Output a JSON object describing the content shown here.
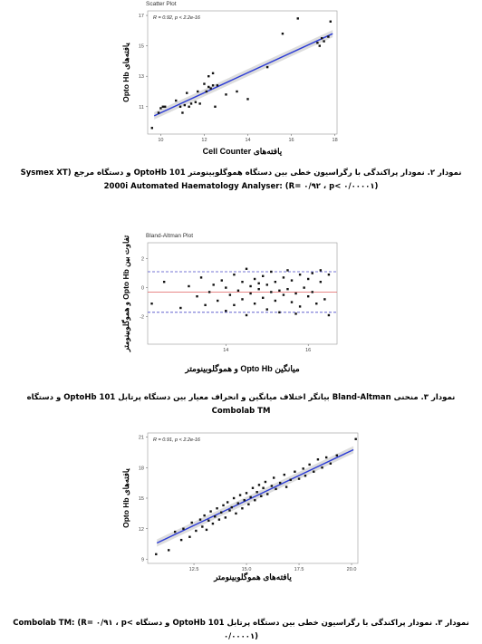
{
  "chart_data": [
    {
      "type": "scatter",
      "title": "Scatter Plot",
      "annotation": "R = 0.92, p < 2.2e-16",
      "xlabel": "یافته‌های Cell Counter",
      "ylabel": "یافته‌های Opto Hb",
      "caption": "نمودار ۲. نمودار پراکندگی با رگراسیون خطی بین دستگاه هموگلوبینومتر OptoHb 101 و دستگاه مرجع (Sysmex XT 2000i Automated Haematology Analyser: (R= ۰/۹۲ ، p< ۰/۰۰۰۰۱)",
      "xlim": [
        9.4,
        18.1
      ],
      "ylim": [
        9.2,
        17.3
      ],
      "xticks": [
        10,
        12,
        14,
        16,
        18
      ],
      "yticks": [
        11,
        13,
        15,
        17
      ],
      "color": "#111111",
      "fit_color": "#2b3bd6",
      "x": [
        9.6,
        9.9,
        10.0,
        10.1,
        10.2,
        10.7,
        10.9,
        11.0,
        11.1,
        11.2,
        11.3,
        11.4,
        11.6,
        11.7,
        11.8,
        12.0,
        12.1,
        12.2,
        12.2,
        12.3,
        12.4,
        12.4,
        12.5,
        12.6,
        13.0,
        13.5,
        14.0,
        14.9,
        15.6,
        16.3,
        17.2,
        17.3,
        17.4,
        17.5,
        17.7,
        17.8
      ],
      "values": [
        9.6,
        10.6,
        10.9,
        11.0,
        11.0,
        11.4,
        11.0,
        10.6,
        11.1,
        11.9,
        11.0,
        11.2,
        11.3,
        12.0,
        11.2,
        12.5,
        12.0,
        12.3,
        13.0,
        12.2,
        12.4,
        13.2,
        11.0,
        12.4,
        11.8,
        12.0,
        11.5,
        13.6,
        15.8,
        16.8,
        15.2,
        15.0,
        15.5,
        15.3,
        15.6,
        16.6
      ],
      "fit": {
        "x": [
          9.7,
          17.9
        ],
        "values": [
          10.4,
          15.8
        ]
      }
    },
    {
      "type": "scatter",
      "title": "Bland-Altman Plot",
      "xlabel": "میانگین Opto Hb و هموگلوبینومتر",
      "ylabel": "تفاوت بین Opto Hb و هموگلوبینومتر",
      "caption": "نمودار ۳. منحنی Bland-Altman بیانگر اختلاف میانگین و انحراف معیار بین دستگاه پرتابل OptoHb 101 و دستگاه Combolab TM",
      "xlim": [
        12.1,
        16.7
      ],
      "ylim": [
        -3.9,
        3.1
      ],
      "xticks": [
        14,
        16
      ],
      "yticks": [
        -2,
        0,
        2
      ],
      "color": "#111111",
      "reference_lines": [
        {
          "value": 1.1,
          "color": "#4a4ac8",
          "dashed": true
        },
        {
          "value": -0.3,
          "color": "#e06060",
          "dashed": false
        },
        {
          "value": -1.7,
          "color": "#4a4ac8",
          "dashed": true
        }
      ],
      "x": [
        12.2,
        12.5,
        12.9,
        13.1,
        13.3,
        13.4,
        13.5,
        13.6,
        13.7,
        13.8,
        13.9,
        14.0,
        14.0,
        14.1,
        14.2,
        14.2,
        14.3,
        14.4,
        14.4,
        14.5,
        14.5,
        14.6,
        14.6,
        14.7,
        14.7,
        14.8,
        14.8,
        14.9,
        14.9,
        15.0,
        15.0,
        15.1,
        15.1,
        15.2,
        15.2,
        15.3,
        15.3,
        15.4,
        15.4,
        15.5,
        15.5,
        15.6,
        15.6,
        15.7,
        15.8,
        15.8,
        15.9,
        16.0,
        16.0,
        16.1,
        16.1,
        16.2,
        16.3,
        16.4,
        16.5,
        16.5,
        16.3,
        15.7
      ],
      "values": [
        -1.1,
        0.4,
        -1.4,
        0.1,
        -0.6,
        0.7,
        -1.2,
        -0.3,
        0.2,
        -0.9,
        0.5,
        -1.6,
        0.0,
        -0.5,
        0.9,
        -1.2,
        -0.2,
        0.4,
        -0.8,
        1.3,
        -1.9,
        0.1,
        -0.4,
        0.6,
        -1.1,
        -0.1,
        0.3,
        -0.7,
        0.8,
        -1.5,
        0.2,
        -0.3,
        1.1,
        -0.9,
        0.4,
        -0.2,
        -1.7,
        0.7,
        -0.5,
        1.2,
        -0.1,
        -1.0,
        0.5,
        -0.4,
        0.9,
        -1.3,
        0.0,
        -0.6,
        0.6,
        1.0,
        -0.3,
        -1.1,
        0.4,
        -0.8,
        0.9,
        -1.9,
        1.2,
        -1.8
      ]
    },
    {
      "type": "scatter",
      "annotation": "R = 0.91, p < 2.2e-16",
      "xlabel": "یافته‌های هموگلوبینومتر",
      "ylabel": "یافته‌های Opto Hb",
      "caption": "نمودار ۳. نمودار پراکندگی با رگراسیون خطی بین دستگاه پرتابل OptoHb 101 و دستگاه Combolab TM: (R= ۰/۹۱ ، p< ۰/۰۰۰۰۱)",
      "xlim": [
        10.3,
        20.3
      ],
      "ylim": [
        8.6,
        21.4
      ],
      "xticks": [
        12.5,
        {
          "value": 15,
          "label": "15.0"
        },
        17.5,
        {
          "value": 20,
          "label": "20.0"
        }
      ],
      "yticks": [
        9,
        12,
        15,
        18,
        21
      ],
      "color": "#111111",
      "fit_color": "#2b3bd6",
      "x": [
        10.7,
        11.3,
        11.6,
        11.9,
        12.0,
        12.3,
        12.4,
        12.6,
        12.8,
        12.9,
        13.0,
        13.1,
        13.2,
        13.3,
        13.4,
        13.5,
        13.6,
        13.7,
        13.8,
        13.9,
        14.0,
        14.1,
        14.2,
        14.3,
        14.4,
        14.5,
        14.6,
        14.7,
        14.8,
        14.9,
        15.0,
        15.1,
        15.2,
        15.3,
        15.4,
        15.5,
        15.6,
        15.7,
        15.8,
        15.9,
        16.0,
        16.2,
        16.3,
        16.4,
        16.6,
        16.8,
        16.9,
        17.1,
        17.3,
        17.5,
        17.7,
        17.8,
        18.0,
        18.2,
        18.4,
        18.6,
        18.8,
        19.0,
        19.3,
        20.2
      ],
      "values": [
        9.5,
        9.9,
        11.7,
        10.9,
        12.0,
        11.2,
        12.6,
        11.8,
        12.9,
        12.2,
        13.3,
        11.9,
        12.8,
        13.7,
        12.5,
        13.2,
        14.0,
        12.9,
        13.6,
        14.3,
        13.1,
        14.6,
        13.8,
        14.1,
        15.0,
        13.5,
        14.5,
        15.3,
        14.0,
        14.8,
        15.5,
        14.4,
        15.1,
        16.0,
        14.8,
        15.6,
        16.3,
        15.2,
        16.0,
        16.6,
        15.4,
        16.2,
        17.0,
        15.9,
        16.5,
        17.3,
        16.1,
        16.8,
        17.6,
        16.9,
        17.9,
        17.2,
        18.3,
        17.6,
        18.8,
        18.0,
        19.0,
        18.4,
        19.2,
        20.8
      ],
      "fit": {
        "x": [
          10.74,
          20.09
        ],
        "values": [
          10.6,
          19.76
        ]
      }
    }
  ]
}
